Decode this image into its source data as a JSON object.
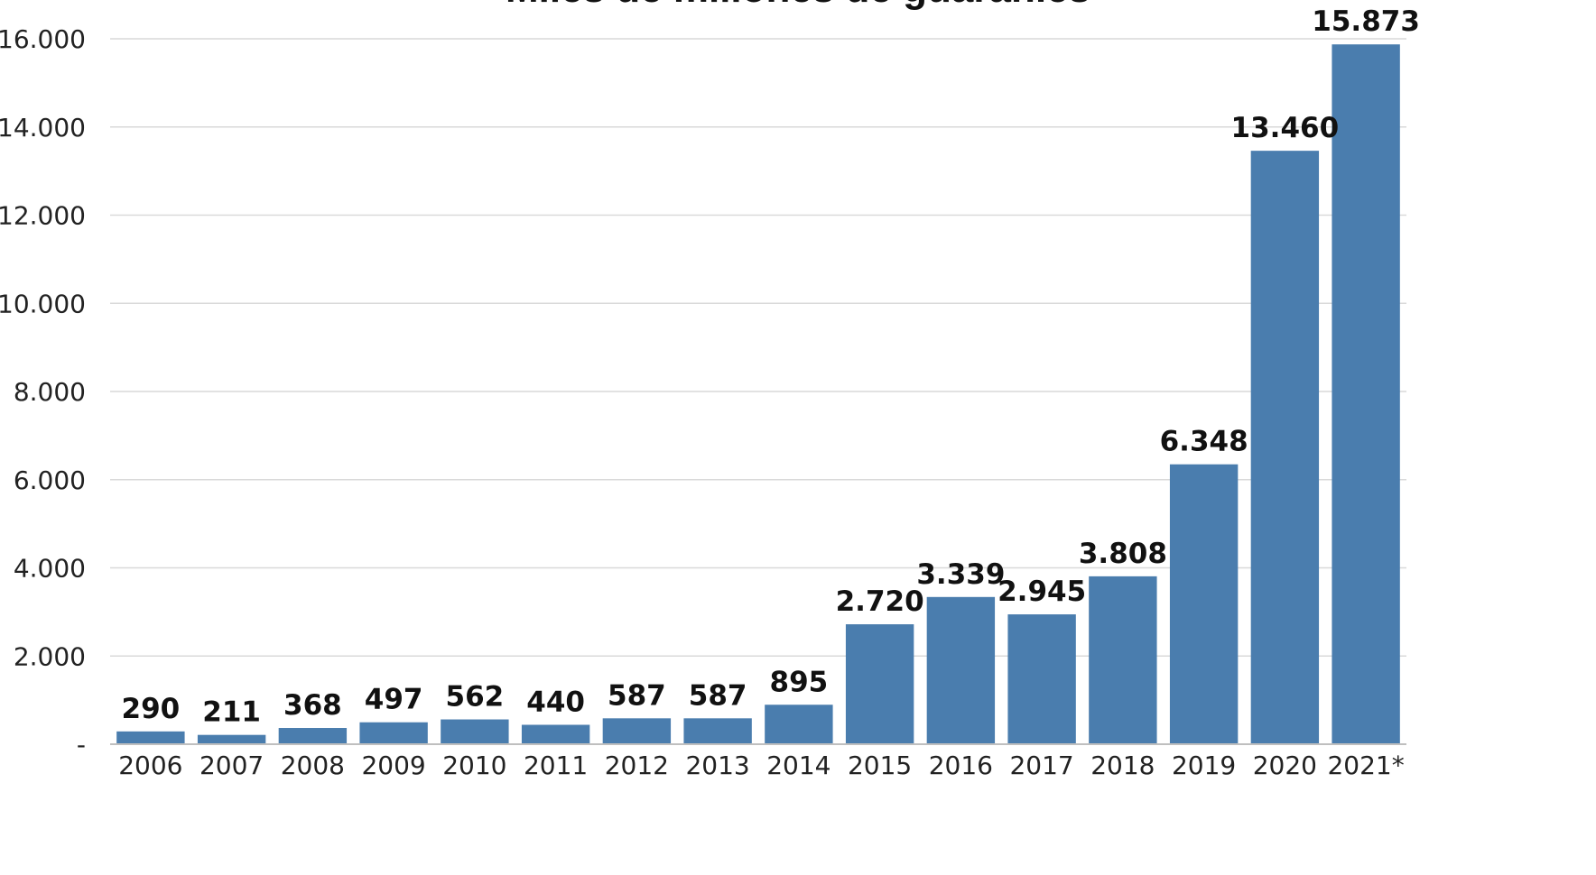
{
  "chart_data": {
    "type": "bar",
    "title": "Miles de millones de guaraníes",
    "categories": [
      "2006",
      "2007",
      "2008",
      "2009",
      "2010",
      "2011",
      "2012",
      "2013",
      "2014",
      "2015",
      "2016",
      "2017",
      "2018",
      "2019",
      "2020",
      "2021*"
    ],
    "values": [
      290,
      211,
      368,
      497,
      562,
      440,
      587,
      587,
      895,
      2720,
      3339,
      2945,
      3808,
      6348,
      13460,
      15873
    ],
    "value_labels": [
      "290",
      "211",
      "368",
      "497",
      "562",
      "440",
      "587",
      "587",
      "895",
      "2.720",
      "3.339",
      "2.945",
      "3.808",
      "6.348",
      "13.460",
      "15.873"
    ],
    "ylim": [
      0,
      16000
    ],
    "yticks": [
      0,
      2000,
      4000,
      6000,
      8000,
      10000,
      12000,
      14000,
      16000
    ],
    "ytick_labels": [
      "-",
      "2.000",
      "4.000",
      "6.000",
      "8.000",
      "10.000",
      "12.000",
      "14.000",
      "16.000"
    ],
    "grid": true,
    "legend": "none",
    "bar_color": "#4a7dae",
    "xlabel": "",
    "ylabel": ""
  }
}
